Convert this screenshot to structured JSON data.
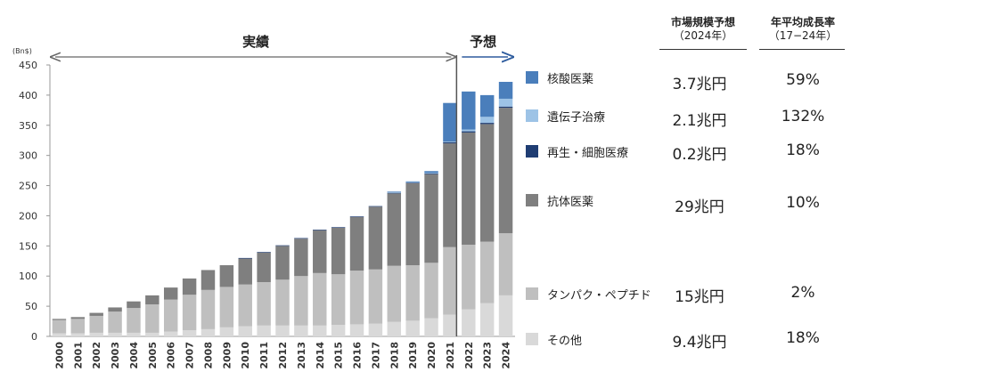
{
  "chart_data": {
    "type": "bar",
    "stacked": true,
    "unit_label": "(Bn$)",
    "ylim": [
      0,
      450
    ],
    "yticks": [
      0,
      50,
      100,
      150,
      200,
      250,
      300,
      350,
      400,
      450
    ],
    "categories": [
      "2000",
      "2001",
      "2002",
      "2003",
      "2004",
      "2005",
      "2006",
      "2007",
      "2008",
      "2009",
      "2010",
      "2011",
      "2012",
      "2013",
      "2014",
      "2015",
      "2016",
      "2017",
      "2018",
      "2019",
      "2020",
      "2021",
      "2022",
      "2023",
      "2024"
    ],
    "series": [
      {
        "name": "その他",
        "color": "#d9d9d9",
        "values": [
          5,
          5,
          6,
          6,
          6,
          6,
          8,
          10,
          12,
          15,
          17,
          18,
          18,
          18,
          18,
          19,
          20,
          21,
          24,
          26,
          30,
          36,
          45,
          55,
          68
        ]
      },
      {
        "name": "タンパク・ペプチド",
        "color": "#bfbfbf",
        "values": [
          22,
          24,
          28,
          35,
          41,
          47,
          53,
          59,
          65,
          67,
          69,
          72,
          76,
          82,
          87,
          84,
          89,
          90,
          93,
          92,
          92,
          112,
          107,
          102,
          103
        ]
      },
      {
        "name": "抗体医薬",
        "color": "#7f7f7f",
        "values": [
          2,
          3,
          5,
          7,
          11,
          15,
          20,
          27,
          33,
          36,
          43,
          49,
          56,
          62,
          71,
          77,
          89,
          104,
          120,
          136,
          147,
          172,
          186,
          195,
          208
        ]
      },
      {
        "name": "再生・細胞医療",
        "color": "#1f3d73",
        "values": [
          0,
          0,
          0,
          0,
          0,
          0,
          0,
          0,
          0,
          0,
          1,
          1,
          1,
          1,
          1,
          1,
          1,
          1,
          1,
          1,
          1,
          2,
          2,
          2,
          2
        ]
      },
      {
        "name": "遺伝子治療",
        "color": "#9dc3e6",
        "values": [
          0,
          0,
          0,
          0,
          0,
          0,
          0,
          0,
          0,
          0,
          0,
          0,
          0,
          0,
          0,
          0,
          0,
          0,
          1,
          1,
          1,
          1,
          3,
          10,
          13
        ]
      },
      {
        "name": "核酸医薬",
        "color": "#4a7ebb",
        "values": [
          0,
          0,
          0,
          0,
          0,
          0,
          0,
          0,
          0,
          0,
          0,
          0,
          0,
          0,
          0,
          0,
          0,
          0,
          1,
          1,
          3,
          64,
          63,
          36,
          28
        ]
      }
    ],
    "actual_label": "実績",
    "forecast_label": "予想",
    "forecast_start_index": 22
  },
  "table": {
    "col1_header": "市場規模予想",
    "col1_sub": "（2024年）",
    "col2_header": "年平均成長率",
    "col2_sub": "（17−24年）",
    "rows": [
      {
        "label": "核酸医薬",
        "color": "#4a7ebb",
        "size": "3.7兆円",
        "cagr": "59%"
      },
      {
        "label": "遺伝子治療",
        "color": "#9dc3e6",
        "size": "2.1兆円",
        "cagr": "132%"
      },
      {
        "label": "再生・細胞医療",
        "color": "#1f3d73",
        "size": "0.2兆円",
        "cagr": "18%"
      },
      {
        "label": "抗体医薬",
        "color": "#7f7f7f",
        "size": "29兆円",
        "cagr": "10%"
      },
      {
        "label": "タンパク・ペプチド",
        "color": "#bfbfbf",
        "size": "15兆円",
        "cagr": "2%"
      },
      {
        "label": "その他",
        "color": "#d9d9d9",
        "size": "9.4兆円",
        "cagr": "18%"
      }
    ]
  }
}
